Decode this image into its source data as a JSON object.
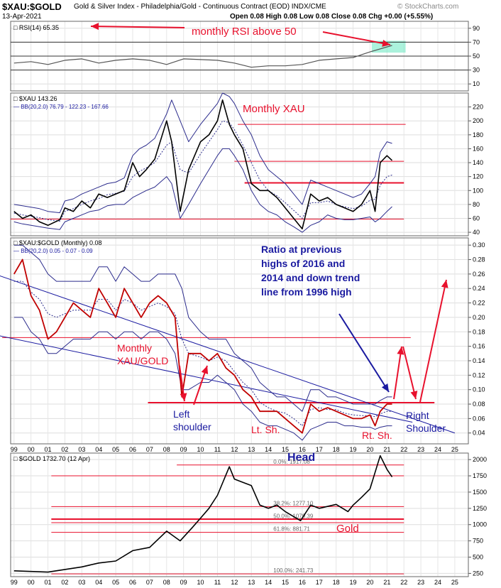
{
  "header": {
    "symbol": "$XAU:$GOLD",
    "description": "Gold & Silver Index - Philadelphia/Gold - Continuous Contract (EOD)  INDX/CME",
    "date": "13-Apr-2021",
    "ohlc": "Open 0.08  High 0.08  Low 0.08  Close 0.08  Chg +0.00 (+5.55%)",
    "watermark": "© StockCharts.com"
  },
  "colors": {
    "price": "#000000",
    "annotation_red": "#e8112d",
    "annotation_blue": "#1a1aa0",
    "band": "#2b2b8c",
    "rsi_line": "#555555",
    "highlight": "#66e8c0",
    "ratio_bars": "#c00000"
  },
  "x_axis": {
    "ticks": [
      "99",
      "00",
      "01",
      "02",
      "03",
      "04",
      "05",
      "06",
      "07",
      "08",
      "09",
      "10",
      "11",
      "12",
      "13",
      "14",
      "15",
      "16",
      "17",
      "18",
      "19",
      "20",
      "21",
      "22",
      "23",
      "24",
      "25"
    ]
  },
  "chart_data": [
    {
      "panel": "rsi",
      "type": "line",
      "legend": "RSI(14) 65.35",
      "ylim": [
        0,
        100
      ],
      "y_ticks": [
        10,
        30,
        50,
        70,
        90
      ],
      "reference_lines": [
        30,
        50,
        70
      ],
      "x": [
        1999,
        2000,
        2001,
        2002,
        2003,
        2004,
        2005,
        2006,
        2007,
        2008,
        2009,
        2010,
        2011,
        2012,
        2013,
        2014,
        2015,
        2016,
        2017,
        2018,
        2019,
        2020,
        2021.3
      ],
      "values": [
        40,
        42,
        38,
        44,
        46,
        40,
        44,
        46,
        44,
        38,
        46,
        45,
        44,
        40,
        34,
        36,
        36,
        38,
        44,
        46,
        48,
        56,
        65.35
      ],
      "annotations": [
        {
          "text": "monthly RSI above 50"
        }
      ]
    },
    {
      "panel": "xau",
      "type": "line",
      "legend_title": "$XAU 143.26",
      "legend_bands": "BB(20,2.0) 76.79 - 122.23 - 167.66",
      "ylim": [
        35,
        240
      ],
      "y_ticks": [
        40,
        60,
        80,
        100,
        120,
        140,
        160,
        180,
        200,
        220
      ],
      "x": [
        1999,
        1999.5,
        2000,
        2000.5,
        2001,
        2001.7,
        2002,
        2002.5,
        2003,
        2003.5,
        2004,
        2004.5,
        2005,
        2005.5,
        2006,
        2006.4,
        2006.8,
        2007.3,
        2008,
        2008.3,
        2008.8,
        2009.3,
        2010,
        2010.5,
        2011,
        2011.3,
        2011.7,
        2012,
        2012.5,
        2013,
        2013.5,
        2014,
        2014.5,
        2015,
        2015.5,
        2016,
        2016.5,
        2017,
        2017.5,
        2018,
        2018.5,
        2019,
        2019.5,
        2020,
        2020.3,
        2020.6,
        2021,
        2021.3
      ],
      "values": [
        70,
        60,
        65,
        55,
        50,
        58,
        75,
        70,
        85,
        75,
        95,
        90,
        95,
        100,
        140,
        120,
        130,
        145,
        200,
        170,
        70,
        130,
        170,
        180,
        200,
        230,
        195,
        180,
        160,
        110,
        100,
        100,
        90,
        75,
        60,
        45,
        95,
        85,
        90,
        80,
        75,
        70,
        80,
        100,
        70,
        140,
        150,
        143.26
      ],
      "upper_band": [
        80,
        78,
        76,
        74,
        70,
        68,
        85,
        88,
        95,
        100,
        105,
        110,
        112,
        118,
        150,
        160,
        165,
        175,
        210,
        230,
        200,
        170,
        195,
        210,
        225,
        240,
        235,
        225,
        200,
        180,
        150,
        130,
        120,
        110,
        95,
        80,
        115,
        110,
        105,
        100,
        95,
        90,
        95,
        110,
        120,
        155,
        170,
        167.66
      ],
      "lower_band": [
        55,
        52,
        50,
        48,
        46,
        44,
        55,
        60,
        65,
        70,
        72,
        78,
        80,
        80,
        90,
        95,
        100,
        105,
        120,
        110,
        60,
        80,
        110,
        130,
        150,
        160,
        160,
        150,
        130,
        100,
        80,
        70,
        65,
        55,
        48,
        40,
        50,
        55,
        65,
        60,
        58,
        58,
        60,
        62,
        55,
        60,
        70,
        76.79
      ],
      "horizontal_lines": [
        195,
        142,
        111,
        59
      ],
      "annotations": [
        {
          "text": "Monthly XAU"
        }
      ]
    },
    {
      "panel": "ratio",
      "type": "line",
      "legend_title": "$XAU:$GOLD (Monthly) 0.08",
      "legend_bands": "BB(20,2.0) 0.05 - 0.07 - 0.09",
      "ylim": [
        0.025,
        0.31
      ],
      "y_ticks": [
        0.04,
        0.06,
        0.08,
        0.1,
        0.12,
        0.14,
        0.16,
        0.18,
        0.2,
        0.22,
        0.24,
        0.26,
        0.28,
        0.3
      ],
      "x": [
        1999,
        1999.5,
        2000,
        2000.5,
        2001,
        2001.5,
        2002,
        2002.5,
        2003,
        2003.5,
        2004,
        2004.5,
        2005,
        2005.5,
        2006,
        2006.5,
        2007,
        2007.5,
        2008,
        2008.5,
        2008.9,
        2009.3,
        2010,
        2010.5,
        2011,
        2011.5,
        2012,
        2012.5,
        2013,
        2013.5,
        2014,
        2014.5,
        2015,
        2015.5,
        2016,
        2016.5,
        2017,
        2017.5,
        2018,
        2018.5,
        2019,
        2019.5,
        2020,
        2020.3,
        2020.6,
        2021,
        2021.3
      ],
      "values": [
        0.26,
        0.28,
        0.23,
        0.21,
        0.17,
        0.18,
        0.2,
        0.22,
        0.21,
        0.2,
        0.24,
        0.22,
        0.2,
        0.24,
        0.22,
        0.2,
        0.22,
        0.23,
        0.22,
        0.2,
        0.09,
        0.15,
        0.15,
        0.14,
        0.15,
        0.13,
        0.12,
        0.1,
        0.09,
        0.07,
        0.07,
        0.07,
        0.06,
        0.05,
        0.04,
        0.08,
        0.07,
        0.075,
        0.07,
        0.065,
        0.06,
        0.06,
        0.065,
        0.05,
        0.07,
        0.08,
        0.08
      ],
      "upper_band": [
        0.3,
        0.3,
        0.29,
        0.28,
        0.26,
        0.25,
        0.25,
        0.25,
        0.25,
        0.25,
        0.27,
        0.27,
        0.25,
        0.27,
        0.26,
        0.25,
        0.25,
        0.26,
        0.26,
        0.26,
        0.24,
        0.2,
        0.18,
        0.17,
        0.17,
        0.17,
        0.15,
        0.14,
        0.13,
        0.11,
        0.1,
        0.09,
        0.09,
        0.08,
        0.07,
        0.1,
        0.1,
        0.09,
        0.09,
        0.085,
        0.08,
        0.08,
        0.08,
        0.08,
        0.085,
        0.09,
        0.09
      ],
      "lower_band": [
        0.2,
        0.2,
        0.18,
        0.17,
        0.15,
        0.15,
        0.16,
        0.17,
        0.17,
        0.17,
        0.18,
        0.18,
        0.17,
        0.18,
        0.18,
        0.17,
        0.18,
        0.18,
        0.17,
        0.15,
        0.1,
        0.1,
        0.11,
        0.11,
        0.12,
        0.11,
        0.1,
        0.08,
        0.07,
        0.055,
        0.05,
        0.05,
        0.045,
        0.04,
        0.03,
        0.045,
        0.05,
        0.055,
        0.055,
        0.05,
        0.05,
        0.048,
        0.048,
        0.045,
        0.048,
        0.05,
        0.05
      ],
      "horizontal_lines": [
        0.172,
        0.082
      ],
      "trend_lines": [
        {
          "from": [
            1996,
            0.275
          ],
          "to": [
            2025,
            0.04
          ]
        },
        {
          "from": [
            1996,
            0.185
          ],
          "to": [
            2022.5,
            0.055
          ]
        }
      ],
      "annotations": [
        {
          "text": "Ratio at previous highs of 2016 and 2014 and down trend line from 1996 high"
        },
        {
          "text": "Monthly XAU/GOLD"
        },
        {
          "text": "Left shoulder"
        },
        {
          "text": "Lt. Sh."
        },
        {
          "text": "Rt. Sh."
        },
        {
          "text": "Right Shoulder"
        },
        {
          "text": "Head"
        }
      ]
    },
    {
      "panel": "gold",
      "type": "line",
      "legend_title": "$GOLD 1732.70 (12 Apr)",
      "ylim": [
        200,
        2100
      ],
      "y_ticks": [
        250,
        500,
        750,
        1000,
        1250,
        1500,
        1750,
        2000
      ],
      "x": [
        1999,
        2000,
        2001,
        2002,
        2003,
        2004,
        2005,
        2006,
        2007,
        2008,
        2008.8,
        2009.5,
        2010,
        2010.5,
        2011,
        2011.7,
        2012,
        2012.5,
        2013,
        2013.5,
        2014,
        2014.5,
        2015,
        2015.9,
        2016.5,
        2017,
        2018,
        2018.7,
        2019,
        2019.5,
        2020,
        2020.6,
        2021,
        2021.3
      ],
      "values": [
        290,
        280,
        270,
        310,
        350,
        410,
        440,
        600,
        650,
        900,
        750,
        950,
        1100,
        1250,
        1450,
        1890,
        1700,
        1650,
        1600,
        1300,
        1250,
        1300,
        1200,
        1060,
        1300,
        1250,
        1310,
        1200,
        1300,
        1420,
        1550,
        2060,
        1850,
        1732.7
      ],
      "fibonacci_levels": [
        {
          "label": "0.0%: 1917.08",
          "value": 1917.08
        },
        {
          "label": "38.2%: 1277.10",
          "value": 1277.1
        },
        {
          "label": "50.0%: 1079.39",
          "value": 1079.39
        },
        {
          "label": "61.8%: 881.71",
          "value": 881.71
        },
        {
          "label": "100.0%: 241.73",
          "value": 241.73
        }
      ],
      "extra_lines": [
        1750,
        1090,
        1030
      ],
      "annotations": [
        {
          "text": "Gold"
        }
      ]
    }
  ]
}
